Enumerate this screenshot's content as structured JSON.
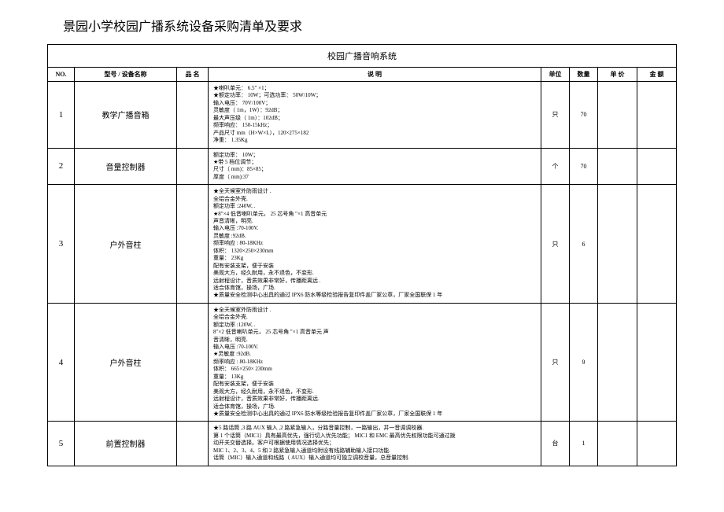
{
  "title": "景园小学校园广播系统设备采购清单及要求",
  "systemTitle": "校园广播音响系统",
  "headers": {
    "no": "NO.",
    "name": "型号 / 设备名称",
    "brand": "品 名",
    "desc": "说       明",
    "unit": "单位",
    "qty": "数量",
    "price": "单 价",
    "amount": "金 额"
  },
  "rows": [
    {
      "no": "1",
      "name": "教学广播音箱",
      "brand": "",
      "desc": "★喇叭单元：  6.5″ ×1；\n★额定功率：  10W；可选功率：  50W/10W；\n输入电压：  70V/100V；\n灵敏度（ 1m，1W）：92dB；\n最大声压级（ 1m）：102dB；\n频率响应：  150-15kHz；\n产品尺寸 mm（H×W×L），120×275×182\n净重： 1.35Kg",
      "unit": "只",
      "qty": "70",
      "price": "",
      "amount": ""
    },
    {
      "no": "2",
      "name": "音量控制器",
      "brand": "",
      "desc": "额定功率：  10W；\n★带 5 档位调节；\n尺寸（ mm)：85×85；\n厚度（ mm):37",
      "unit": "个",
      "qty": "70",
      "price": "",
      "amount": ""
    },
    {
      "no": "3",
      "name": "户外音柱",
      "brand": "",
      "desc": "★全天候室外防雨设计  .\n全铝合金外壳.\n额定功率 :240W, .\n★8″×4 低音喇叭单元，  25 芯号角 ″×1 高音单元\n声音清晰，明亮.\n输入电压 :70-100V.\n灵敏度 :92dB.\n频率响应 : 80-18KHz\n体积：  1320×250×230mm\n重量： 23Kg\n配有安装支架，便于安装\n美观大方，经久耐用，永不退色，不变形.\n远射程设计，音质效果非常好，传播距离远  .\n适合体育馆，操场，广场.\n★质量安全检测中心出具的通过     IPX6 防水等级检验报告复印件盖厂家公章，厂家全国联保     1 年",
      "unit": "只",
      "qty": "6",
      "price": "",
      "amount": ""
    },
    {
      "no": "4",
      "name": "户外音柱",
      "brand": "",
      "desc": "★全天候室外防雨设计  .\n全铝合金外壳.\n额定功率 :120W, .\n8″×2 低音喇叭单元，  25 芯号角 ″×1 高音单元                                                                    声\n音清晰，明亮.\n输入电压 :70-100V.\n★灵敏度 :92dB.\n频率响应 : 80-18KHz\n体积：  665×250× 230mm\n重量： 13Kg\n配有安装支架，便于安装\n美观大方，经久耐用，永不退色，不变形.\n远射程设计，音质效果非常好，传播距离远.\n适合体育馆，操场，广场.\n★质量安全检测中心出具的通过     IPX6 防水等级检验报告复印件盖厂家公章，厂家全国联保     1 年",
      "unit": "只",
      "qty": "9",
      "price": "",
      "amount": ""
    },
    {
      "no": "5",
      "name": "前置控制器",
      "brand": "",
      "desc": "★5 路话筒 ,3 路 AUX 输入 ,2 路紧急输入，分路音量控制，一路输出，并一音调调校器.\n第 1 个话筒（MIC1）具有最高优先，强行切入优先功能；     MIC1 和 EMC 最高优先权限功能可通过拨\n动开关交替选择。客户可根据使用情况选择优先；\nMIC 1、2、3、4、5 和 2 路紧急输入通道均附设有线路辅助输入接口功能.\n话筒（MIC）输入通道和线路（ AUX）输入通道均可独立调校音量，总音量控制.",
      "unit": "台",
      "qty": "1",
      "price": "",
      "amount": ""
    }
  ]
}
